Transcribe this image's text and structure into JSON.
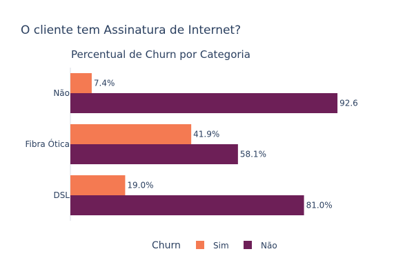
{
  "page": {
    "title": "O cliente tem Assinatura de Internet?"
  },
  "chart_data": {
    "type": "bar",
    "orientation": "horizontal",
    "barmode": "group",
    "title": "Percentual de Churn por Categoria",
    "xlabel": "",
    "ylabel": "",
    "xlim": [
      0,
      100
    ],
    "categories": [
      "Não",
      "Fibra Ótica",
      "DSL"
    ],
    "series": [
      {
        "name": "Sim",
        "color": "#f47a52",
        "values": [
          7.4,
          41.9,
          19.0
        ],
        "labels": [
          "7.4%",
          "41.9%",
          "19.0%"
        ]
      },
      {
        "name": "Não",
        "color": "#6d1f57",
        "values": [
          92.6,
          58.1,
          81.0
        ],
        "labels": [
          "92.6",
          "58.1%",
          "81.0%"
        ]
      }
    ],
    "legend": {
      "title": "Churn",
      "placement": "bottom",
      "items": [
        "Sim",
        "Não"
      ]
    },
    "grid": false
  }
}
